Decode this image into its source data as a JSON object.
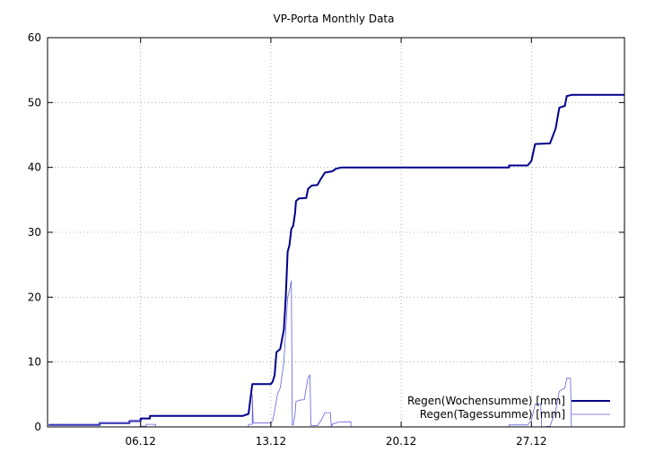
{
  "chart_data": {
    "type": "line",
    "title": "VP-Porta Monthly Data",
    "xlabel": "",
    "ylabel": "",
    "x_unit": "day of December",
    "xlim": [
      1,
      32
    ],
    "ylim": [
      0,
      60
    ],
    "yticks": [
      0,
      10,
      20,
      30,
      40,
      50,
      60
    ],
    "xticks": [
      {
        "value": 6,
        "label": "06.12"
      },
      {
        "value": 13,
        "label": "13.12"
      },
      {
        "value": 20,
        "label": "20.12"
      },
      {
        "value": 27,
        "label": "27.12"
      }
    ],
    "grid": true,
    "legend_position": "bottom-right",
    "series": [
      {
        "name": "Regen(Wochensumme) [mm]",
        "color": "#00008b",
        "style": "thick",
        "points": [
          [
            1.1,
            0.2
          ],
          [
            1.1,
            0.3
          ],
          [
            3.8,
            0.3
          ],
          [
            3.8,
            0.6
          ],
          [
            5.4,
            0.6
          ],
          [
            5.4,
            0.9
          ],
          [
            6.0,
            0.9
          ],
          [
            6.0,
            1.3
          ],
          [
            6.5,
            1.3
          ],
          [
            6.5,
            1.7
          ],
          [
            11.5,
            1.7
          ],
          [
            11.8,
            2.0
          ],
          [
            12.0,
            6.6
          ],
          [
            13.0,
            6.6
          ],
          [
            13.1,
            7.0
          ],
          [
            13.2,
            8.0
          ],
          [
            13.3,
            11.5
          ],
          [
            13.5,
            12.0
          ],
          [
            13.7,
            15.0
          ],
          [
            13.8,
            20.0
          ],
          [
            13.9,
            27.0
          ],
          [
            14.0,
            28.0
          ],
          [
            14.1,
            30.5
          ],
          [
            14.2,
            31.0
          ],
          [
            14.3,
            33.0
          ],
          [
            14.35,
            34.8
          ],
          [
            14.5,
            35.2
          ],
          [
            14.9,
            35.3
          ],
          [
            15.0,
            36.7
          ],
          [
            15.2,
            37.2
          ],
          [
            15.5,
            37.3
          ],
          [
            15.7,
            38.3
          ],
          [
            15.9,
            39.2
          ],
          [
            16.3,
            39.4
          ],
          [
            16.5,
            39.8
          ],
          [
            16.8,
            40.0
          ],
          [
            25.8,
            40.0
          ],
          [
            25.8,
            40.3
          ],
          [
            26.8,
            40.3
          ],
          [
            27.0,
            41.0
          ],
          [
            27.2,
            43.6
          ],
          [
            28.0,
            43.7
          ],
          [
            28.3,
            46.0
          ],
          [
            28.5,
            49.2
          ],
          [
            28.8,
            49.5
          ],
          [
            28.9,
            51.0
          ],
          [
            29.2,
            51.2
          ],
          [
            32.0,
            51.2
          ]
        ]
      },
      {
        "name": "Regen(Tagessumme) [mm]",
        "color": "#6060e0",
        "style": "thin",
        "points": [
          [
            1.1,
            0.2
          ],
          [
            1.1,
            0.3
          ],
          [
            3.8,
            0.3
          ],
          [
            3.8,
            0.6
          ],
          [
            5.4,
            0.6
          ],
          [
            5.4,
            0.9
          ],
          [
            6.0,
            0.9
          ],
          [
            6.0,
            0.1
          ],
          [
            6.3,
            0.1
          ],
          [
            6.3,
            0.4
          ],
          [
            6.8,
            0.4
          ],
          [
            6.8,
            0.0
          ],
          [
            11.8,
            0.0
          ],
          [
            11.8,
            0.4
          ],
          [
            12.0,
            0.4
          ],
          [
            12.0,
            5.0
          ],
          [
            12.05,
            0.6
          ],
          [
            13.0,
            0.6
          ],
          [
            13.1,
            1.0
          ],
          [
            13.2,
            2.5
          ],
          [
            13.35,
            5.0
          ],
          [
            13.5,
            6.0
          ],
          [
            13.7,
            10.0
          ],
          [
            13.8,
            15.0
          ],
          [
            13.9,
            20.0
          ],
          [
            14.0,
            21.0
          ],
          [
            14.1,
            22.5
          ],
          [
            14.15,
            0.3
          ],
          [
            14.2,
            0.3
          ],
          [
            14.3,
            2.0
          ],
          [
            14.35,
            3.9
          ],
          [
            14.5,
            4.1
          ],
          [
            14.8,
            4.2
          ],
          [
            14.9,
            6.0
          ],
          [
            15.0,
            7.6
          ],
          [
            15.1,
            8.0
          ],
          [
            15.15,
            0.2
          ],
          [
            15.5,
            0.2
          ],
          [
            15.7,
            1.0
          ],
          [
            15.9,
            2.2
          ],
          [
            16.2,
            2.2
          ],
          [
            16.25,
            0.0
          ],
          [
            16.3,
            0.4
          ],
          [
            16.6,
            0.7
          ],
          [
            17.3,
            0.8
          ],
          [
            17.3,
            0.0
          ],
          [
            25.8,
            0.0
          ],
          [
            25.8,
            0.3
          ],
          [
            26.8,
            0.3
          ],
          [
            27.0,
            1.0
          ],
          [
            27.2,
            3.5
          ],
          [
            27.5,
            3.5
          ],
          [
            27.55,
            0.0
          ],
          [
            28.0,
            0.1
          ],
          [
            28.3,
            2.5
          ],
          [
            28.5,
            5.5
          ],
          [
            28.8,
            6.0
          ],
          [
            28.9,
            7.5
          ],
          [
            29.1,
            7.5
          ],
          [
            29.15,
            0.0
          ],
          [
            32.0,
            0.0
          ]
        ]
      }
    ]
  }
}
